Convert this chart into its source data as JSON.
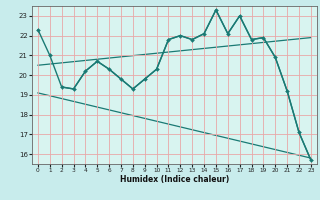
{
  "xlabel": "Humidex (Indice chaleur)",
  "xlim": [
    -0.5,
    23.5
  ],
  "ylim": [
    15.5,
    23.5
  ],
  "yticks": [
    16,
    17,
    18,
    19,
    20,
    21,
    22,
    23
  ],
  "xticks": [
    0,
    1,
    2,
    3,
    4,
    5,
    6,
    7,
    8,
    9,
    10,
    11,
    12,
    13,
    14,
    15,
    16,
    17,
    18,
    19,
    20,
    21,
    22,
    23
  ],
  "bg_color": "#c8ecec",
  "plot_bg": "#d8f4f0",
  "grid_color": "#e8a8a8",
  "line_color": "#1a7a74",
  "lines": [
    {
      "x": [
        0,
        1,
        2,
        3,
        4,
        5,
        6,
        7,
        8,
        9,
        10,
        11,
        12,
        13,
        14,
        15,
        16,
        17,
        18,
        19,
        20,
        21,
        22,
        23
      ],
      "y": [
        22.3,
        21.0,
        19.4,
        19.3,
        20.2,
        20.7,
        20.3,
        19.8,
        19.3,
        19.8,
        20.3,
        21.8,
        22.0,
        21.8,
        22.1,
        23.3,
        22.1,
        23.0,
        21.8,
        21.9,
        20.9,
        19.2,
        17.1,
        15.7
      ],
      "marker": "D",
      "markersize": 2.0,
      "linewidth": 1.0,
      "with_markers": true
    },
    {
      "x": [
        2,
        3,
        4,
        5,
        6,
        7,
        8,
        9,
        10,
        11,
        12,
        13,
        14,
        15,
        16,
        17,
        18,
        19,
        20,
        21,
        22,
        23
      ],
      "y": [
        19.4,
        19.3,
        20.2,
        20.7,
        20.3,
        19.8,
        19.3,
        19.8,
        20.3,
        21.8,
        22.0,
        21.8,
        22.1,
        23.3,
        22.1,
        23.0,
        21.8,
        21.9,
        20.9,
        19.2,
        17.1,
        15.7
      ],
      "marker": "D",
      "markersize": 2.0,
      "linewidth": 1.0,
      "with_markers": false
    },
    {
      "x": [
        0,
        23
      ],
      "y": [
        20.5,
        21.9
      ],
      "marker": null,
      "markersize": 0,
      "linewidth": 0.9,
      "with_markers": false
    },
    {
      "x": [
        0,
        23
      ],
      "y": [
        19.1,
        15.8
      ],
      "marker": null,
      "markersize": 0,
      "linewidth": 0.9,
      "with_markers": false
    }
  ]
}
